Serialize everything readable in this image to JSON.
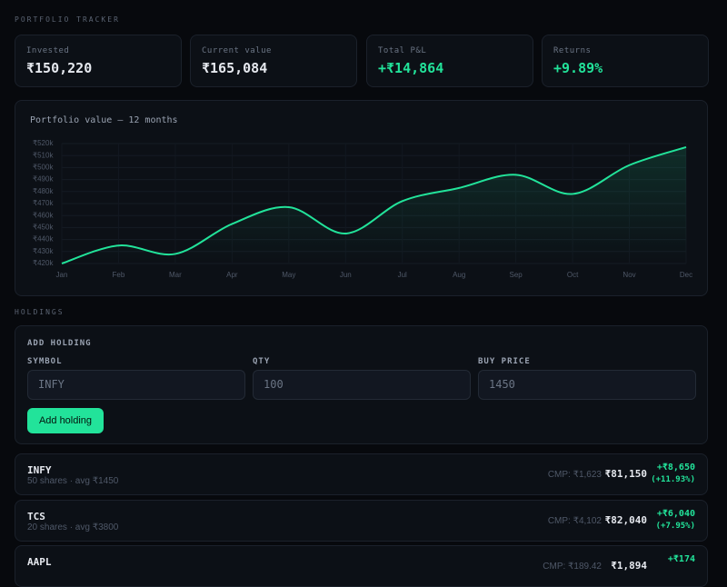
{
  "header": {
    "title": "PORTFOLIO TRACKER"
  },
  "summary": [
    {
      "label": "Invested",
      "value": "₹150,220",
      "tone": "plain"
    },
    {
      "label": "Current value",
      "value": "₹165,084",
      "tone": "plain"
    },
    {
      "label": "Total P&L",
      "value": "+₹14,864",
      "tone": "gain"
    },
    {
      "label": "Returns",
      "value": "+9.89%",
      "tone": "gain"
    }
  ],
  "chart_data": {
    "type": "line",
    "title": "Portfolio value — 12 months",
    "categories": [
      "Jan",
      "Feb",
      "Mar",
      "Apr",
      "May",
      "Jun",
      "Jul",
      "Aug",
      "Sep",
      "Oct",
      "Nov",
      "Dec"
    ],
    "values": [
      420000,
      435000,
      428000,
      453000,
      467000,
      445000,
      472000,
      483000,
      494000,
      478000,
      502000,
      517000
    ],
    "color": "#22e39a",
    "ylim": [
      420000,
      520000
    ],
    "yticks": [
      {
        "value": 420000,
        "label": "₹420k"
      },
      {
        "value": 430000,
        "label": "₹430k"
      },
      {
        "value": 440000,
        "label": "₹440k"
      },
      {
        "value": 450000,
        "label": "₹450k"
      },
      {
        "value": 460000,
        "label": "₹460k"
      },
      {
        "value": 470000,
        "label": "₹470k"
      },
      {
        "value": 480000,
        "label": "₹480k"
      },
      {
        "value": 490000,
        "label": "₹490k"
      },
      {
        "value": 500000,
        "label": "₹500k"
      },
      {
        "value": 510000,
        "label": "₹510k"
      },
      {
        "value": 520000,
        "label": "₹520k"
      }
    ],
    "grid": true
  },
  "holdings": {
    "title": "HOLDINGS",
    "form": {
      "title": "ADD HOLDING",
      "fields": [
        {
          "label": "SYMBOL",
          "placeholder": "INFY"
        },
        {
          "label": "QTY",
          "placeholder": "100"
        },
        {
          "label": "BUY PRICE",
          "placeholder": "1450"
        }
      ],
      "button": "Add holding"
    },
    "rows": [
      {
        "symbol": "INFY",
        "detail": "50 shares · avg ₹1450",
        "cmp": "CMP: ₹1,623",
        "value": "₹81,150",
        "pnl": "+₹8,650",
        "pct": "(+11.93%)"
      },
      {
        "symbol": "TCS",
        "detail": "20 shares · avg ₹3800",
        "cmp": "CMP: ₹4,102",
        "value": "₹82,040",
        "pnl": "+₹6,040",
        "pct": "(+7.95%)"
      },
      {
        "symbol": "AAPL",
        "cmp": "CMP: ₹189.42",
        "value": "₹1,894",
        "pnl": "+₹174"
      }
    ]
  }
}
